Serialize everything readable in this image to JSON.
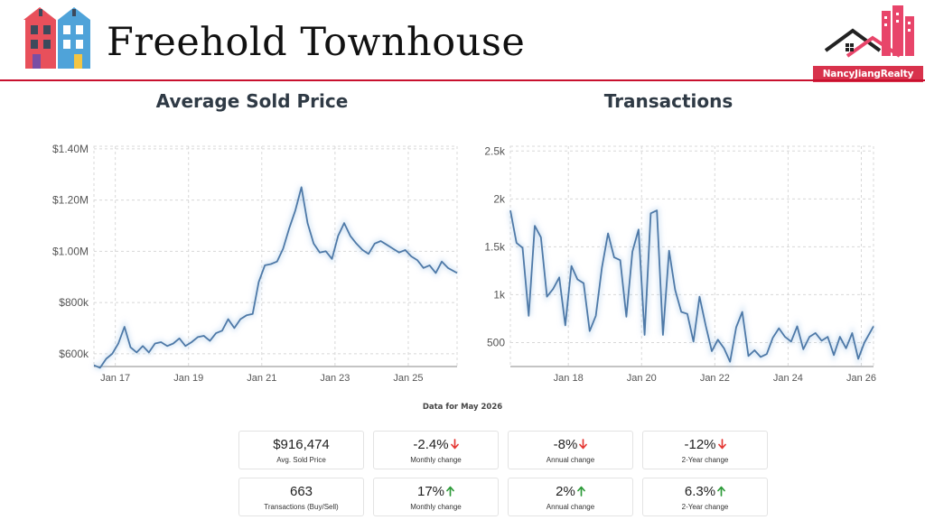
{
  "header": {
    "title": "Freehold Townhouse",
    "logo_icon": "townhouse-icon",
    "brand_icon": "realty-logo-icon",
    "brand_name": "NancyJiangRealty",
    "accent": "#c8102e"
  },
  "charts_title": {
    "price": "Average Sold Price",
    "transactions": "Transactions"
  },
  "chart_data": [
    {
      "type": "line",
      "title": "Average Sold Price",
      "xlabel": "",
      "ylabel": "",
      "y_ticks": [
        600000,
        800000,
        1000000,
        1200000,
        1400000
      ],
      "y_tick_labels": [
        "$600k",
        "$800k",
        "$1.00M",
        "$1.20M",
        "$1.40M"
      ],
      "x_ticks": [
        "Jan 17",
        "Jan 19",
        "Jan 21",
        "Jan 23",
        "Jan 25"
      ],
      "x_tick_values": [
        "2017-01",
        "2019-01",
        "2021-01",
        "2023-01",
        "2025-01"
      ],
      "xlim": [
        "2016-06",
        "2026-05"
      ],
      "ylim": [
        550000,
        1410000
      ],
      "grid": true,
      "color": "#4e79a7",
      "series": [
        {
          "x": [
            "2016-06",
            "2016-08",
            "2016-10",
            "2016-12",
            "2017-02",
            "2017-04",
            "2017-06",
            "2017-08",
            "2017-10",
            "2017-12",
            "2018-02",
            "2018-04",
            "2018-06",
            "2018-08",
            "2018-10",
            "2018-12",
            "2019-02",
            "2019-04",
            "2019-06",
            "2019-08",
            "2019-10",
            "2019-12",
            "2020-02",
            "2020-04",
            "2020-06",
            "2020-08",
            "2020-10",
            "2020-12",
            "2021-02",
            "2021-04",
            "2021-06",
            "2021-08",
            "2021-10",
            "2021-12",
            "2022-02",
            "2022-04",
            "2022-06",
            "2022-08",
            "2022-10",
            "2022-12",
            "2023-02",
            "2023-04",
            "2023-06",
            "2023-08",
            "2023-10",
            "2023-12",
            "2024-02",
            "2024-04",
            "2024-06",
            "2024-08",
            "2024-10",
            "2024-12",
            "2025-02",
            "2025-04",
            "2025-06",
            "2025-08",
            "2025-10",
            "2025-12",
            "2026-02",
            "2026-05"
          ],
          "values": [
            555000,
            545000,
            580000,
            600000,
            640000,
            705000,
            625000,
            605000,
            630000,
            605000,
            640000,
            645000,
            630000,
            640000,
            660000,
            630000,
            645000,
            665000,
            670000,
            650000,
            680000,
            690000,
            735000,
            700000,
            735000,
            750000,
            755000,
            880000,
            945000,
            950000,
            960000,
            1010000,
            1090000,
            1160000,
            1250000,
            1110000,
            1030000,
            995000,
            1000000,
            970000,
            1060000,
            1110000,
            1060000,
            1030000,
            1005000,
            990000,
            1030000,
            1040000,
            1025000,
            1010000,
            995000,
            1005000,
            980000,
            965000,
            935000,
            945000,
            915000,
            960000,
            935000,
            915000
          ]
        }
      ]
    },
    {
      "type": "line",
      "title": "Transactions",
      "xlabel": "",
      "ylabel": "",
      "y_ticks": [
        500,
        1000,
        1500,
        2000,
        2500
      ],
      "y_tick_labels": [
        "500",
        "1k",
        "1.5k",
        "2k",
        "2.5k"
      ],
      "x_ticks": [
        "Jan 18",
        "Jan 20",
        "Jan 22",
        "Jan 24",
        "Jan 26"
      ],
      "x_tick_values": [
        "2018-01",
        "2020-01",
        "2022-01",
        "2024-01",
        "2026-01"
      ],
      "xlim": [
        "2016-06",
        "2026-05"
      ],
      "ylim": [
        250,
        2550
      ],
      "grid": true,
      "color": "#4e79a7",
      "series": [
        {
          "x": [
            "2016-06",
            "2016-08",
            "2016-10",
            "2016-12",
            "2017-02",
            "2017-04",
            "2017-06",
            "2017-08",
            "2017-10",
            "2017-12",
            "2018-02",
            "2018-04",
            "2018-06",
            "2018-08",
            "2018-10",
            "2018-12",
            "2019-02",
            "2019-04",
            "2019-06",
            "2019-08",
            "2019-10",
            "2019-12",
            "2020-02",
            "2020-04",
            "2020-06",
            "2020-08",
            "2020-10",
            "2020-12",
            "2021-02",
            "2021-04",
            "2021-06",
            "2021-08",
            "2021-10",
            "2021-12",
            "2022-02",
            "2022-04",
            "2022-06",
            "2022-08",
            "2022-10",
            "2022-12",
            "2023-02",
            "2023-04",
            "2023-06",
            "2023-08",
            "2023-10",
            "2023-12",
            "2024-02",
            "2024-04",
            "2024-06",
            "2024-08",
            "2024-10",
            "2024-12",
            "2025-02",
            "2025-04",
            "2025-06",
            "2025-08",
            "2025-10",
            "2025-12",
            "2026-02",
            "2026-05"
          ],
          "values": [
            1880,
            1540,
            1490,
            780,
            1720,
            1600,
            980,
            1060,
            1180,
            680,
            1300,
            1160,
            1120,
            620,
            780,
            1280,
            1640,
            1390,
            1360,
            770,
            1450,
            1680,
            580,
            1850,
            1880,
            580,
            1460,
            1050,
            820,
            800,
            510,
            980,
            680,
            410,
            530,
            440,
            300,
            660,
            820,
            360,
            420,
            350,
            380,
            550,
            650,
            560,
            510,
            670,
            430,
            560,
            600,
            520,
            560,
            370,
            560,
            440,
            600,
            330,
            500,
            670
          ]
        }
      ]
    }
  ],
  "data_note": "Data for May 2026",
  "stats": {
    "price": {
      "value": "$916,474",
      "label": "Avg. Sold Price",
      "changes": [
        {
          "value": "-2.4%",
          "label": "Monthly change",
          "direction": "down"
        },
        {
          "value": "-8%",
          "label": "Annual change",
          "direction": "down"
        },
        {
          "value": "-12%",
          "label": "2-Year change",
          "direction": "down"
        }
      ]
    },
    "transactions": {
      "value": "663",
      "label": "Transactions (Buy/Sell)",
      "changes": [
        {
          "value": "17%",
          "label": "Monthly change",
          "direction": "up"
        },
        {
          "value": "2%",
          "label": "Annual change",
          "direction": "up"
        },
        {
          "value": "6.3%",
          "label": "2-Year change",
          "direction": "up"
        }
      ]
    },
    "colors": {
      "down": "#e53935",
      "up": "#2e9b3a"
    }
  }
}
